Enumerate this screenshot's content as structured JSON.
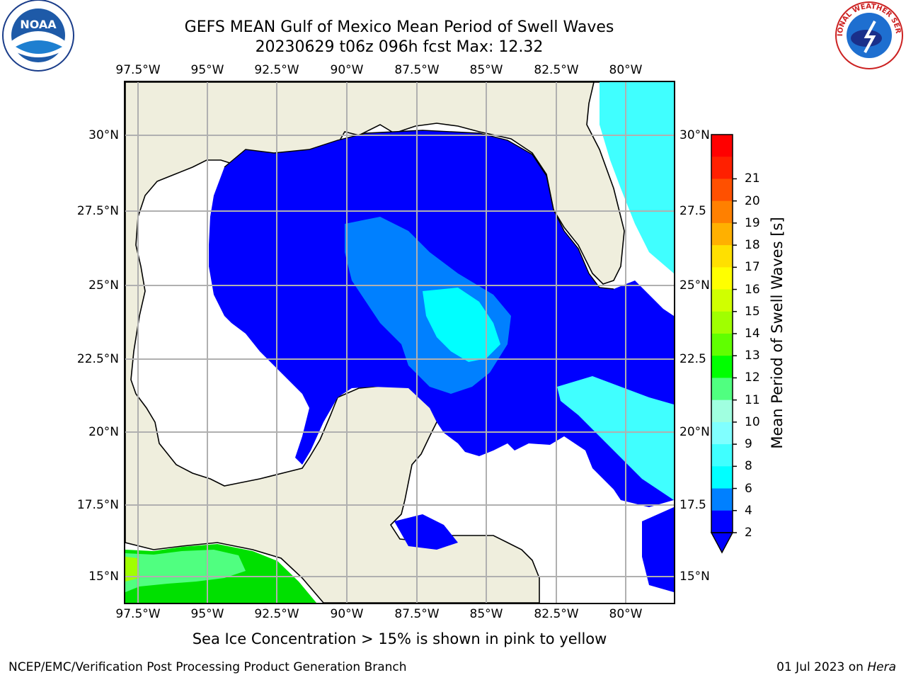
{
  "title": {
    "line1": "GEFS MEAN Gulf of Mexico Mean Period of Swell Waves",
    "line2": "20230629 t06z 096h fcst   Max: 12.32"
  },
  "map": {
    "lon_labels": [
      "97.5°W",
      "95°W",
      "92.5°W",
      "90°W",
      "87.5°W",
      "85°W",
      "82.5°W",
      "80°W"
    ],
    "lat_labels_left": [
      "30°N",
      "27.5°N",
      "25°N",
      "22.5°N",
      "20°N",
      "17.5°N",
      "15°N"
    ],
    "lat_labels_right": [
      "30°N",
      "27.5",
      "25°N",
      "22.5",
      "20°N",
      "17.5",
      "15°N"
    ],
    "colors": {
      "land": "#efeedd",
      "water": "#ffffff",
      "grid": "#b0b0b0"
    }
  },
  "colorbar": {
    "title": "Mean Period of Swell Waves [s]",
    "labels": [
      "2",
      "4",
      "6",
      "8",
      "9",
      "10",
      "11",
      "12",
      "13",
      "14",
      "15",
      "16",
      "17",
      "18",
      "19",
      "20",
      "21"
    ],
    "colors": [
      "#0000ff",
      "#0080ff",
      "#00ffff",
      "#40ffff",
      "#80ffff",
      "#a0ffe0",
      "#50ff80",
      "#00ff00",
      "#60ff00",
      "#a0ff00",
      "#d0ff00",
      "#ffff00",
      "#ffe000",
      "#ffb000",
      "#ff8000",
      "#ff5000",
      "#ff2000",
      "#ff0000"
    ]
  },
  "note": "Sea Ice Concentration > 15% is shown in pink to yellow",
  "credit_left": "NCEP/EMC/Verification Post Processing Product Generation Branch",
  "credit_right": {
    "date": "01 Jul 2023 on",
    "machine": "Hera"
  },
  "logos": {
    "noaa": "NOAA",
    "nws": "NATIONAL WEATHER SERVICE"
  }
}
